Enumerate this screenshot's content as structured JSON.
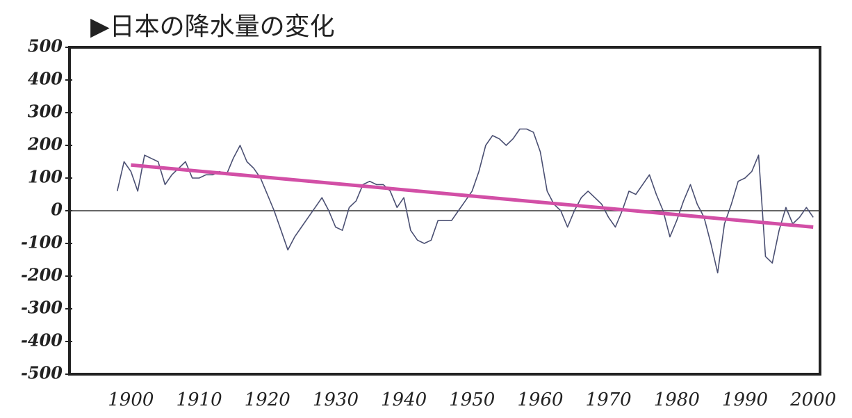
{
  "chart_data": {
    "type": "line",
    "title": "▶日本の降水量の変化",
    "xlim": [
      1891,
      2001
    ],
    "xticks": [
      1900,
      1910,
      1920,
      1930,
      1940,
      1950,
      1960,
      1970,
      1980,
      1990,
      2000
    ],
    "ylim": [
      -500,
      500
    ],
    "yticks": [
      500,
      400,
      300,
      200,
      100,
      0,
      -100,
      -200,
      -300,
      -400,
      -500
    ],
    "series": [
      {
        "color": "#4a4f72",
        "x": [
          1898,
          1899,
          1900,
          1901,
          1902,
          1903,
          1904,
          1905,
          1906,
          1907,
          1908,
          1909,
          1910,
          1911,
          1912,
          1913,
          1914,
          1915,
          1916,
          1917,
          1918,
          1919,
          1920,
          1921,
          1922,
          1923,
          1924,
          1925,
          1926,
          1927,
          1928,
          1929,
          1930,
          1931,
          1932,
          1933,
          1934,
          1935,
          1936,
          1937,
          1938,
          1939,
          1940,
          1941,
          1942,
          1943,
          1944,
          1945,
          1946,
          1947,
          1948,
          1949,
          1950,
          1951,
          1952,
          1953,
          1954,
          1955,
          1956,
          1957,
          1958,
          1959,
          1960,
          1961,
          1962,
          1963,
          1964,
          1965,
          1966,
          1967,
          1968,
          1969,
          1970,
          1971,
          1972,
          1973,
          1974,
          1975,
          1976,
          1977,
          1978,
          1979,
          1980,
          1981,
          1982,
          1983,
          1984,
          1985,
          1986,
          1987,
          1988,
          1989,
          1990,
          1991,
          1992,
          1993,
          1994,
          1995,
          1996,
          1997,
          1998,
          1999,
          2000
        ],
        "values": [
          60,
          150,
          120,
          60,
          170,
          160,
          150,
          80,
          110,
          130,
          150,
          100,
          100,
          110,
          110,
          120,
          110,
          160,
          200,
          150,
          130,
          100,
          50,
          0,
          -60,
          -120,
          -80,
          -50,
          -20,
          10,
          40,
          0,
          -50,
          -60,
          10,
          30,
          80,
          90,
          80,
          80,
          60,
          10,
          40,
          -60,
          -90,
          -100,
          -90,
          -30,
          -30,
          -30,
          0,
          30,
          60,
          120,
          200,
          230,
          220,
          200,
          220,
          250,
          250,
          240,
          180,
          60,
          20,
          0,
          -50,
          0,
          40,
          60,
          40,
          20,
          -20,
          -50,
          0,
          60,
          50,
          80,
          110,
          50,
          0,
          -80,
          -30,
          30,
          80,
          20,
          -20,
          -100,
          -190,
          -40,
          20,
          90,
          100,
          120,
          170,
          -140,
          -160,
          -60,
          10,
          -40,
          -20,
          10,
          -20
        ]
      },
      {
        "color": "#d24fa6",
        "x": [
          1900,
          2000
        ],
        "values": [
          140,
          -50
        ]
      }
    ]
  }
}
